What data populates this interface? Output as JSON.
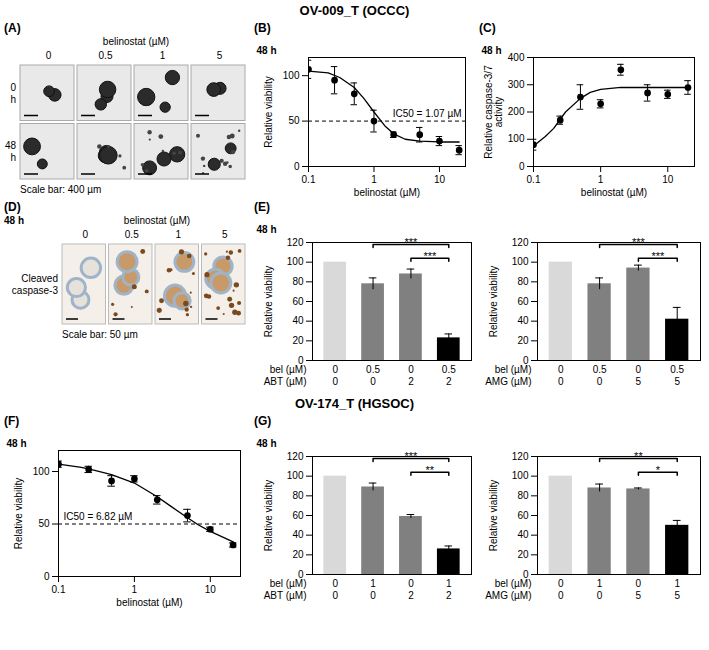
{
  "figure_titles": [
    "OV-009_T (OCCC)",
    "OV-174_T (HGSOC)"
  ],
  "image_panels": [
    {
      "panel": "(A)",
      "header": "belinostat (µM)",
      "columns": [
        "0",
        "0.5",
        "1",
        "5"
      ],
      "rows": [
        "0 h",
        "48 h"
      ],
      "caption": "Scale bar: 400 µm"
    },
    {
      "panel": "(D)",
      "time": "48 h",
      "header": "belinostat (µM)",
      "columns": [
        "0",
        "0.5",
        "1",
        "5"
      ],
      "rows": [
        "Cleaved caspase-3"
      ],
      "caption": "Scale bar: 50 µm"
    }
  ],
  "chart_data": [
    {
      "type": "line",
      "panel": "(B)",
      "title": "48 h",
      "x_label": "belinostat (µM)",
      "y_label": "Relative viability",
      "log": "x",
      "xlim": [
        0.1,
        25
      ],
      "xticks": [
        0.1,
        1,
        10
      ],
      "ylim": [
        0,
        120
      ],
      "yticks": [
        0,
        50,
        100
      ],
      "x": [
        0.1,
        0.25,
        0.5,
        1,
        2,
        5,
        10,
        20
      ],
      "values": [
        107,
        95,
        80,
        50,
        35,
        35,
        28,
        18
      ],
      "errors": [
        10,
        15,
        12,
        12,
        3,
        8,
        5,
        5
      ],
      "fit": {
        "x": [
          0.1,
          0.2,
          0.3,
          0.5,
          0.7,
          1,
          1.5,
          2,
          3,
          5,
          10,
          20
        ],
        "values": [
          105,
          103,
          98,
          87,
          75,
          60,
          44,
          36,
          30,
          28,
          27,
          27
        ]
      },
      "reference_line": 50,
      "annotations": [
        "IC50 = 1.07 µM"
      ],
      "marker": "circle",
      "color": "#000000"
    },
    {
      "type": "line",
      "panel": "(C)",
      "title": "48 h",
      "x_label": "belinostat (µM)",
      "y_label": "Relative caspase-3/7 activity",
      "log": "x",
      "xlim": [
        0.1,
        25
      ],
      "xticks": [
        0.1,
        1,
        10
      ],
      "ylim": [
        0,
        400
      ],
      "yticks": [
        0,
        100,
        200,
        300,
        400
      ],
      "x": [
        0.1,
        0.25,
        0.5,
        1,
        2,
        5,
        10,
        20
      ],
      "values": [
        80,
        170,
        255,
        230,
        355,
        270,
        265,
        290
      ],
      "errors": [
        20,
        15,
        45,
        15,
        20,
        30,
        15,
        25
      ],
      "fit": {
        "x": [
          0.1,
          0.15,
          0.2,
          0.3,
          0.5,
          0.7,
          1,
          2,
          5,
          10,
          20
        ],
        "values": [
          75,
          110,
          140,
          200,
          250,
          272,
          283,
          290,
          290,
          290,
          290
        ]
      },
      "marker": "circle",
      "color": "#000000"
    },
    {
      "type": "bar",
      "panel": "(E)",
      "title": "48 h",
      "y_label": "Relative viability",
      "ylim": [
        0,
        120
      ],
      "yticks": [
        0,
        20,
        40,
        60,
        80,
        100,
        120
      ],
      "values": [
        100,
        78,
        88,
        23
      ],
      "errors": [
        0,
        6,
        5,
        4
      ],
      "colors": [
        "#d9d9d9",
        "#808080",
        "#808080",
        "#000000"
      ],
      "table": [
        {
          "name": "bel (µM)",
          "values": [
            0,
            0.5,
            0,
            0.5
          ]
        },
        {
          "name": "ABT (µM)",
          "values": [
            0,
            0,
            2,
            2
          ]
        }
      ],
      "significance": [
        {
          "from": 1,
          "to": 3,
          "label": "***"
        },
        {
          "from": 2,
          "to": 3,
          "label": "***"
        }
      ]
    },
    {
      "type": "bar",
      "y_label": "Relative viability",
      "ylim": [
        0,
        120
      ],
      "yticks": [
        0,
        20,
        40,
        60,
        80,
        100,
        120
      ],
      "values": [
        100,
        78,
        94,
        42
      ],
      "errors": [
        0,
        6,
        3,
        12
      ],
      "colors": [
        "#d9d9d9",
        "#808080",
        "#808080",
        "#000000"
      ],
      "table": [
        {
          "name": "bel (µM)",
          "values": [
            0,
            0.5,
            0,
            0.5
          ]
        },
        {
          "name": "AMG (µM)",
          "values": [
            0,
            0,
            5,
            5
          ]
        }
      ],
      "significance": [
        {
          "from": 1,
          "to": 3,
          "label": "***"
        },
        {
          "from": 2,
          "to": 3,
          "label": "***"
        }
      ]
    },
    {
      "type": "line",
      "panel": "(F)",
      "title": "48 h",
      "x_label": "belinostat (µM)",
      "y_label": "Relative viability",
      "log": "x",
      "xlim": [
        0.1,
        25
      ],
      "xticks": [
        0.1,
        1,
        10
      ],
      "ylim": [
        0,
        120
      ],
      "yticks": [
        0,
        50,
        100
      ],
      "x": [
        0.1,
        0.25,
        0.5,
        1,
        2,
        5,
        10,
        20
      ],
      "values": [
        107,
        102,
        91,
        93,
        73,
        58,
        45,
        30
      ],
      "errors": [
        3,
        3,
        5,
        3,
        4,
        6,
        2,
        2
      ],
      "fit": {
        "x": [
          0.1,
          0.2,
          0.3,
          0.5,
          1,
          2,
          3,
          5,
          7,
          10,
          20
        ],
        "values": [
          107,
          104,
          101,
          97,
          89,
          76,
          67,
          56,
          49,
          43,
          33
        ]
      },
      "reference_line": 50,
      "annotations": [
        "IC50 = 6.82 µM"
      ],
      "marker": "circle",
      "color": "#000000"
    },
    {
      "type": "bar",
      "panel": "(G)",
      "title": "48 h",
      "y_label": "Relative viability",
      "ylim": [
        0,
        120
      ],
      "yticks": [
        0,
        20,
        40,
        60,
        80,
        100,
        120
      ],
      "values": [
        100,
        89,
        59,
        26
      ],
      "errors": [
        0,
        4,
        2,
        3
      ],
      "colors": [
        "#d9d9d9",
        "#808080",
        "#808080",
        "#000000"
      ],
      "table": [
        {
          "name": "bel (µM)",
          "values": [
            0,
            1,
            0,
            1
          ]
        },
        {
          "name": "ABT (µM)",
          "values": [
            0,
            0,
            2,
            2
          ]
        }
      ],
      "significance": [
        {
          "from": 1,
          "to": 3,
          "label": "***"
        },
        {
          "from": 2,
          "to": 3,
          "label": "**"
        }
      ]
    },
    {
      "type": "bar",
      "y_label": "Relative viability",
      "ylim": [
        0,
        120
      ],
      "yticks": [
        0,
        20,
        40,
        60,
        80,
        100,
        120
      ],
      "values": [
        100,
        88,
        87,
        50
      ],
      "errors": [
        0,
        4,
        1,
        5
      ],
      "colors": [
        "#d9d9d9",
        "#808080",
        "#808080",
        "#000000"
      ],
      "table": [
        {
          "name": "bel (µM)",
          "values": [
            0,
            1,
            0,
            1
          ]
        },
        {
          "name": "AMG (µM)",
          "values": [
            0,
            0,
            5,
            5
          ]
        }
      ],
      "significance": [
        {
          "from": 1,
          "to": 3,
          "label": "**"
        },
        {
          "from": 2,
          "to": 3,
          "label": "*"
        }
      ]
    }
  ]
}
